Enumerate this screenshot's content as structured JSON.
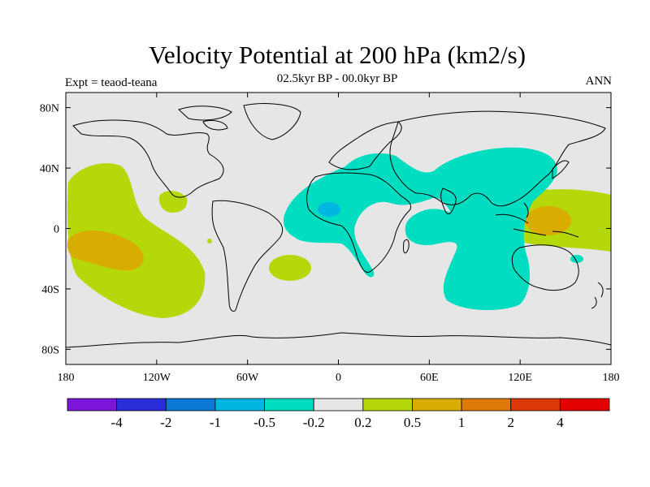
{
  "title": "Velocity Potential at 200 hPa (km2/s)",
  "subtitle": "02.5kyr BP - 00.0kyr BP",
  "left_label": "Expt = teaod-teana",
  "right_label": "ANN",
  "chart_data": {
    "type": "map-contour",
    "variable": "Velocity Potential at 200 hPa",
    "units": "km2/s",
    "season": "ANN",
    "experiment": "teaod-teana",
    "period": "02.5kyr BP - 00.0kyr BP",
    "lon_ticks": [
      "180",
      "120W",
      "60W",
      "0",
      "60E",
      "120E",
      "180"
    ],
    "lon_values": [
      -180,
      -120,
      -60,
      0,
      60,
      120,
      180
    ],
    "lat_ticks": [
      "80N",
      "40N",
      "0",
      "40S",
      "80S"
    ],
    "lat_values": [
      80,
      40,
      0,
      -40,
      -80
    ],
    "lon_range": [
      -180,
      180
    ],
    "lat_range": [
      -90,
      90
    ],
    "colorbar": {
      "labels": [
        "-4",
        "-2",
        "-1",
        "-0.5",
        "-0.2",
        "0.2",
        "0.5",
        "1",
        "2",
        "4"
      ],
      "colors": [
        "#7a15d9",
        "#2b2ed8",
        "#0a78d6",
        "#00b7e1",
        "#00ddc0",
        "#e6e6e6",
        "#b5d80a",
        "#d8ac00",
        "#de7a0a",
        "#dc3808",
        "#e20000"
      ]
    },
    "regions": [
      {
        "name": "tropical-east-pacific",
        "sign": "positive",
        "level": "0.2 to 0.5"
      },
      {
        "name": "central-south-pacific-core",
        "sign": "positive",
        "level": "0.5 to 1"
      },
      {
        "name": "maritime-continent",
        "sign": "positive",
        "level": "0.2 to 0.5"
      },
      {
        "name": "maritime-continent-core",
        "sign": "positive",
        "level": "0.5 to 1"
      },
      {
        "name": "indian-ocean-africa-eurasia",
        "sign": "negative",
        "level": "-0.5 to -0.2"
      },
      {
        "name": "west-africa-core",
        "sign": "negative",
        "level": "-1 to -0.5"
      }
    ]
  }
}
